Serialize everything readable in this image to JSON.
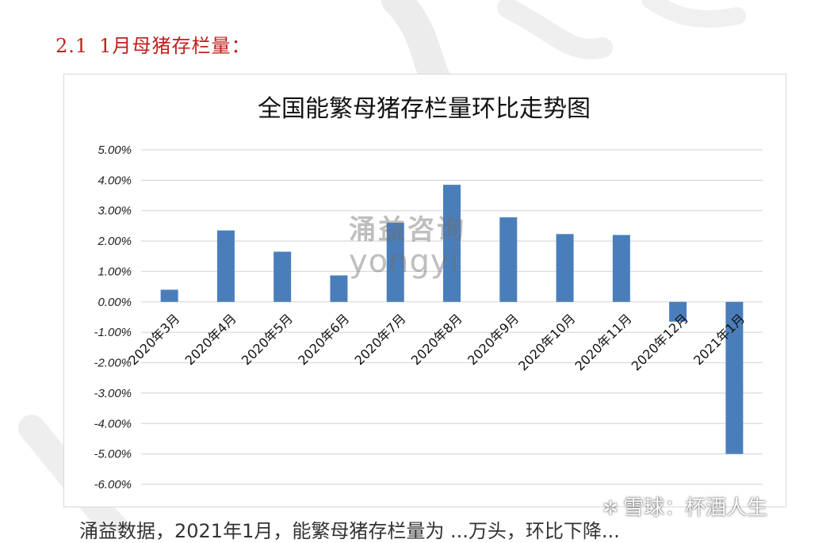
{
  "section": {
    "number": "2.1",
    "title": "1月母猪存栏量："
  },
  "chart_data": {
    "type": "bar",
    "title": "全国能繁母猪存栏量环比走势图",
    "categories": [
      "2020年3月",
      "2020年4月",
      "2020年5月",
      "2020年6月",
      "2020年7月",
      "2020年8月",
      "2020年9月",
      "2020年10月",
      "2020年11月",
      "2020年12月",
      "2021年1月"
    ],
    "values": [
      0.4,
      2.35,
      1.65,
      0.87,
      2.6,
      3.85,
      2.78,
      2.23,
      2.2,
      -0.65,
      -5.0
    ],
    "value_format": "percent_2dp",
    "ylim": [
      -6,
      5
    ],
    "ytick_step": 1,
    "yticks": [
      "5.00%",
      "4.00%",
      "3.00%",
      "2.00%",
      "1.00%",
      "0.00%",
      "-1.00%",
      "-2.00%",
      "-3.00%",
      "-4.00%",
      "-5.00%",
      "-6.00%"
    ],
    "xlabel": "",
    "ylabel": "",
    "grid": true,
    "legend": "none",
    "bar_color": "#4a7ebb",
    "grid_color": "#d9d9d9"
  },
  "watermark": {
    "cn": "涌益咨询",
    "en": "yongyi"
  },
  "footer_mark": {
    "icon": "snowball-icon",
    "text": "雪球：杯酒人生"
  },
  "bottom_text": "涌益数据，2021年1月，能繁母猪存栏量为 ...万头，环比下降..."
}
